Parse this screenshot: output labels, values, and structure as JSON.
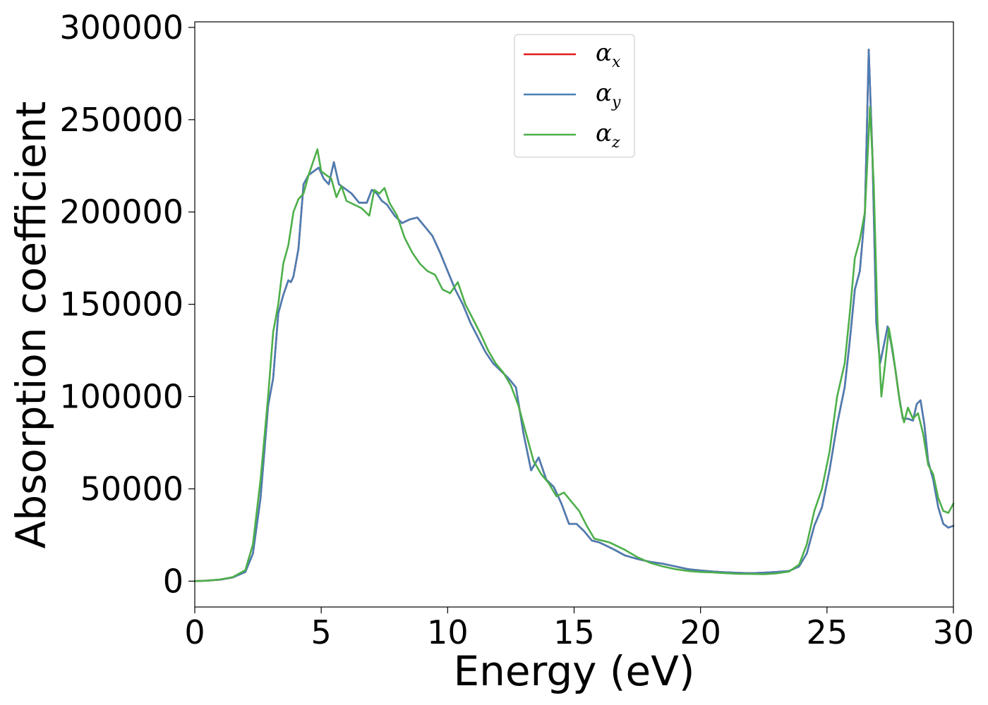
{
  "chart_data": {
    "type": "line",
    "title": "",
    "xlabel": "Energy (eV)",
    "ylabel": "Absorption coefficient",
    "xlim": [
      0,
      30
    ],
    "ylim": [
      -14000,
      303000
    ],
    "xticks": [
      0,
      5,
      10,
      15,
      20,
      25,
      30
    ],
    "yticks": [
      0,
      50000,
      100000,
      150000,
      200000,
      250000,
      300000
    ],
    "grid": false,
    "legend_position": "top-center",
    "series": [
      {
        "name": "α_x",
        "label_base": "α",
        "label_sub": "x",
        "color": "#e41a1c",
        "x": [
          0,
          0.5,
          1,
          1.5,
          2,
          2.3,
          2.6,
          2.9,
          3.1,
          3.3,
          3.5,
          3.7,
          3.8,
          3.9,
          4.1,
          4.3,
          4.5,
          4.7,
          4.9,
          5.1,
          5.3,
          5.5,
          5.7,
          5.9,
          6.2,
          6.5,
          6.8,
          7.0,
          7.2,
          7.4,
          7.6,
          7.9,
          8.2,
          8.5,
          8.8,
          9.1,
          9.4,
          9.7,
          10.0,
          10.3,
          10.6,
          10.9,
          11.2,
          11.5,
          11.8,
          12.1,
          12.4,
          12.7,
          13.0,
          13.3,
          13.6,
          13.9,
          14.2,
          14.5,
          14.8,
          15.1,
          15.4,
          15.7,
          16.0,
          16.3,
          16.6,
          17.0,
          17.5,
          18.0,
          18.5,
          19.0,
          19.5,
          20.0,
          20.5,
          21.0,
          21.5,
          22.0,
          22.5,
          23.0,
          23.5,
          23.9,
          24.2,
          24.5,
          24.8,
          25.1,
          25.4,
          25.7,
          25.9,
          26.1,
          26.3,
          26.5,
          26.65,
          26.8,
          26.95,
          27.1,
          27.25,
          27.4,
          27.55,
          27.7,
          27.85,
          28.0,
          28.2,
          28.4,
          28.55,
          28.7,
          28.85,
          29.0,
          29.2,
          29.4,
          29.6,
          29.8,
          30.0
        ],
        "y": [
          0,
          300,
          800,
          2000,
          5000,
          15000,
          45000,
          95000,
          110000,
          145000,
          155000,
          163000,
          162000,
          165000,
          180000,
          215000,
          220000,
          222000,
          224000,
          218000,
          215000,
          227000,
          215000,
          213000,
          210000,
          205000,
          205000,
          212000,
          210000,
          206000,
          204000,
          198000,
          194000,
          196000,
          197000,
          192000,
          187000,
          178000,
          168000,
          158000,
          150000,
          140000,
          132000,
          124000,
          118000,
          114000,
          110000,
          105000,
          80000,
          60000,
          67000,
          55000,
          51000,
          42000,
          31000,
          31000,
          27000,
          22000,
          21000,
          19000,
          17000,
          14000,
          12000,
          10500,
          9500,
          8000,
          6500,
          5800,
          5200,
          4800,
          4500,
          4300,
          4600,
          5000,
          5500,
          8000,
          15000,
          30000,
          40000,
          60000,
          85000,
          105000,
          130000,
          158000,
          168000,
          200000,
          288000,
          230000,
          140000,
          118000,
          128000,
          138000,
          128000,
          115000,
          100000,
          88000,
          88000,
          87000,
          96000,
          98000,
          85000,
          65000,
          55000,
          40000,
          31000,
          29000,
          30000
        ]
      },
      {
        "name": "α_y",
        "label_base": "α",
        "label_sub": "y",
        "color": "#4a7eb4",
        "x": [
          0,
          0.5,
          1,
          1.5,
          2,
          2.3,
          2.6,
          2.9,
          3.1,
          3.3,
          3.5,
          3.7,
          3.8,
          3.9,
          4.1,
          4.3,
          4.5,
          4.7,
          4.9,
          5.1,
          5.3,
          5.5,
          5.7,
          5.9,
          6.2,
          6.5,
          6.8,
          7.0,
          7.2,
          7.4,
          7.6,
          7.9,
          8.2,
          8.5,
          8.8,
          9.1,
          9.4,
          9.7,
          10.0,
          10.3,
          10.6,
          10.9,
          11.2,
          11.5,
          11.8,
          12.1,
          12.4,
          12.7,
          13.0,
          13.3,
          13.6,
          13.9,
          14.2,
          14.5,
          14.8,
          15.1,
          15.4,
          15.7,
          16.0,
          16.3,
          16.6,
          17.0,
          17.5,
          18.0,
          18.5,
          19.0,
          19.5,
          20.0,
          20.5,
          21.0,
          21.5,
          22.0,
          22.5,
          23.0,
          23.5,
          23.9,
          24.2,
          24.5,
          24.8,
          25.1,
          25.4,
          25.7,
          25.9,
          26.1,
          26.3,
          26.5,
          26.65,
          26.8,
          26.95,
          27.1,
          27.25,
          27.4,
          27.55,
          27.7,
          27.85,
          28.0,
          28.2,
          28.4,
          28.55,
          28.7,
          28.85,
          29.0,
          29.2,
          29.4,
          29.6,
          29.8,
          30.0
        ],
        "y": [
          0,
          300,
          800,
          2000,
          5000,
          15000,
          45000,
          95000,
          110000,
          145000,
          155000,
          163000,
          162000,
          165000,
          180000,
          215000,
          220000,
          222000,
          224000,
          218000,
          215000,
          227000,
          215000,
          213000,
          210000,
          205000,
          205000,
          212000,
          210000,
          206000,
          204000,
          198000,
          194000,
          196000,
          197000,
          192000,
          187000,
          178000,
          168000,
          158000,
          150000,
          140000,
          132000,
          124000,
          118000,
          114000,
          110000,
          105000,
          80000,
          60000,
          67000,
          55000,
          51000,
          42000,
          31000,
          31000,
          27000,
          22000,
          21000,
          19000,
          17000,
          14000,
          12000,
          10500,
          9500,
          8000,
          6500,
          5800,
          5200,
          4800,
          4500,
          4300,
          4600,
          5000,
          5500,
          8000,
          15000,
          30000,
          40000,
          60000,
          85000,
          105000,
          130000,
          158000,
          168000,
          200000,
          288000,
          230000,
          140000,
          118000,
          128000,
          138000,
          128000,
          115000,
          100000,
          88000,
          88000,
          87000,
          96000,
          98000,
          85000,
          65000,
          55000,
          40000,
          31000,
          29000,
          30000
        ]
      },
      {
        "name": "α_z",
        "label_base": "α",
        "label_sub": "z",
        "color": "#4daf4a",
        "x": [
          0,
          0.5,
          1,
          1.5,
          2,
          2.3,
          2.6,
          2.9,
          3.1,
          3.3,
          3.5,
          3.7,
          3.9,
          4.1,
          4.3,
          4.5,
          4.7,
          4.85,
          5.0,
          5.2,
          5.4,
          5.6,
          5.8,
          6.0,
          6.3,
          6.6,
          6.9,
          7.1,
          7.3,
          7.5,
          7.7,
          8.0,
          8.3,
          8.6,
          8.9,
          9.2,
          9.5,
          9.8,
          10.1,
          10.4,
          10.7,
          11.0,
          11.3,
          11.6,
          11.9,
          12.2,
          12.5,
          12.8,
          13.1,
          13.4,
          13.7,
          14.0,
          14.3,
          14.6,
          14.9,
          15.2,
          15.5,
          15.8,
          16.1,
          16.4,
          16.7,
          17.0,
          17.5,
          18.0,
          18.5,
          19.0,
          19.5,
          20.0,
          20.5,
          21.0,
          21.5,
          22.0,
          22.5,
          23.0,
          23.5,
          23.9,
          24.2,
          24.5,
          24.8,
          25.1,
          25.4,
          25.7,
          25.9,
          26.1,
          26.3,
          26.5,
          26.7,
          26.85,
          27.0,
          27.15,
          27.3,
          27.45,
          27.6,
          27.75,
          27.9,
          28.05,
          28.2,
          28.4,
          28.6,
          28.8,
          29.0,
          29.2,
          29.4,
          29.6,
          29.8,
          30.0
        ],
        "y": [
          0,
          300,
          900,
          2200,
          6000,
          20000,
          55000,
          100000,
          135000,
          150000,
          172000,
          182000,
          200000,
          207000,
          210000,
          220000,
          228000,
          234000,
          222000,
          220000,
          218000,
          208000,
          214000,
          206000,
          204000,
          202000,
          198000,
          212000,
          210000,
          213000,
          205000,
          198000,
          186000,
          178000,
          172000,
          168000,
          166000,
          158000,
          156000,
          162000,
          150000,
          142000,
          134000,
          125000,
          118000,
          113000,
          106000,
          95000,
          80000,
          65000,
          58000,
          53000,
          46000,
          48000,
          43000,
          38000,
          30000,
          23000,
          22000,
          21000,
          19000,
          17000,
          13000,
          10000,
          8000,
          6500,
          5500,
          5000,
          4700,
          4300,
          4000,
          3900,
          3800,
          4200,
          5200,
          9000,
          20000,
          38000,
          50000,
          70000,
          100000,
          118000,
          145000,
          175000,
          185000,
          200000,
          257000,
          215000,
          140000,
          100000,
          118000,
          137000,
          125000,
          110000,
          95000,
          86000,
          94000,
          88000,
          91000,
          80000,
          63000,
          58000,
          45000,
          38000,
          37000,
          42000
        ]
      }
    ]
  }
}
